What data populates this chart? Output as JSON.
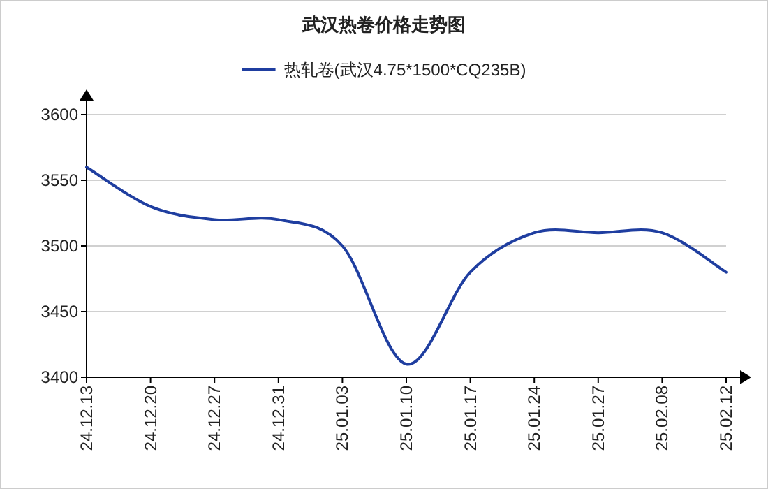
{
  "chart_data": {
    "type": "line",
    "title": "武汉热卷价格走势图",
    "categories": [
      "24.12.13",
      "24.12.20",
      "24.12.27",
      "24.12.31",
      "25.01.03",
      "25.01.10",
      "25.01.17",
      "25.01.24",
      "25.01.27",
      "25.02.08",
      "25.02.12"
    ],
    "series": [
      {
        "name": "热轧卷(武汉4.75*1500*CQ235B)",
        "color": "#1f3ea0",
        "values": [
          3560,
          3530,
          3520,
          3520,
          3500,
          3410,
          3480,
          3510,
          3510,
          3510,
          3480
        ]
      }
    ],
    "ylim": [
      3400,
      3600
    ],
    "yticks": [
      3400,
      3450,
      3500,
      3550,
      3600
    ],
    "grid": "y",
    "legend": "top"
  }
}
